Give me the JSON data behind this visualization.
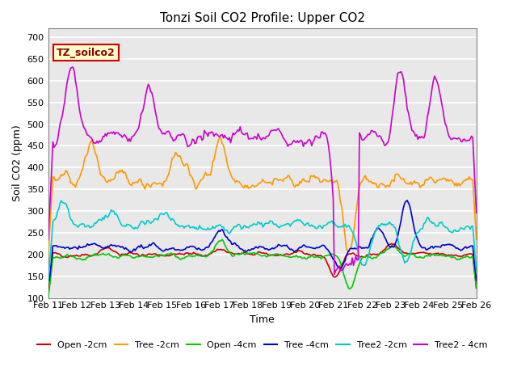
{
  "title": "Tonzi Soil CO2 Profile: Upper CO2",
  "xlabel": "Time",
  "ylabel": "Soil CO2 (ppm)",
  "ylim": [
    100,
    720
  ],
  "yticks": [
    100,
    150,
    200,
    250,
    300,
    350,
    400,
    450,
    500,
    550,
    600,
    650,
    700
  ],
  "date_labels": [
    "Feb 11",
    "Feb 12",
    "Feb 13",
    "Feb 14",
    "Feb 15",
    "Feb 16",
    "Feb 17",
    "Feb 18",
    "Feb 19",
    "Feb 20",
    "Feb 21",
    "Feb 22",
    "Feb 23",
    "Feb 24",
    "Feb 25",
    "Feb 26"
  ],
  "legend_label": "TZ_soilco2",
  "series_colors": {
    "Open -2cm": "#cc0000",
    "Tree -2cm": "#ff9900",
    "Open -4cm": "#00cc00",
    "Tree -4cm": "#0000cc",
    "Tree2 -2cm": "#00cccc",
    "Tree2 - 4cm": "#cc00cc"
  },
  "bg_color": "#e8e8e8",
  "grid_color": "#ffffff",
  "legend_box_color": "#ffffcc",
  "legend_box_edge": "#cc0000"
}
